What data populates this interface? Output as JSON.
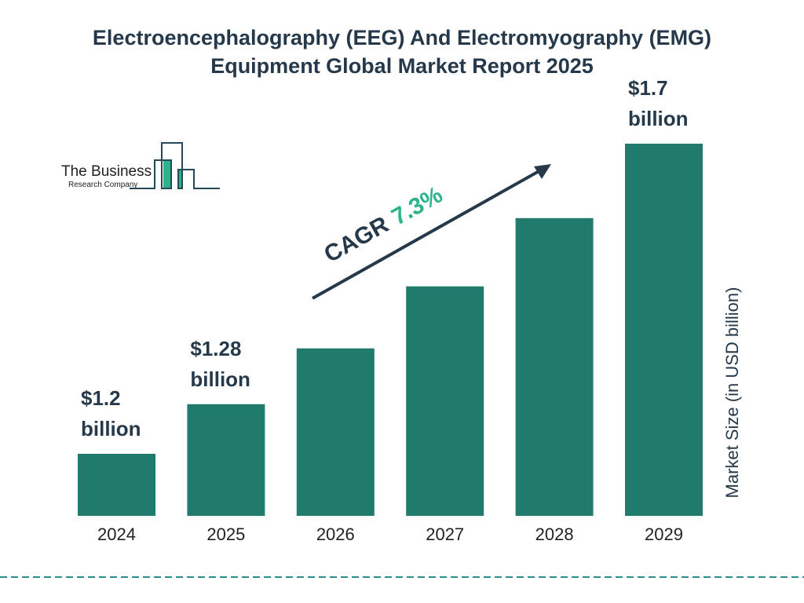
{
  "title_line1": "Electroencephalography (EEG) And Electromyography (EMG)",
  "title_line2": "Equipment Global Market Report 2025",
  "logo": {
    "line1": "The Business",
    "line2": "Research Company"
  },
  "colors": {
    "bar": "#217b6c",
    "text": "#25394a",
    "accent": "#2bb38a"
  },
  "chart_data": {
    "type": "bar",
    "categories": [
      "2024",
      "2025",
      "2026",
      "2027",
      "2028",
      "2029"
    ],
    "values": [
      1.2,
      1.28,
      1.37,
      1.47,
      1.58,
      1.7
    ],
    "data_labels": [
      {
        "index": 0,
        "line1": "$1.2",
        "line2": "billion"
      },
      {
        "index": 1,
        "line1": "$1.28",
        "line2": "billion"
      },
      {
        "index": 5,
        "line1": "$1.7",
        "line2": "billion"
      }
    ],
    "ylabel": "Market Size (in USD billion)",
    "ylim": [
      1.1,
      1.7
    ],
    "grid": false,
    "annotation": {
      "cagr_label": "CAGR",
      "cagr_value": "7.3%"
    }
  }
}
